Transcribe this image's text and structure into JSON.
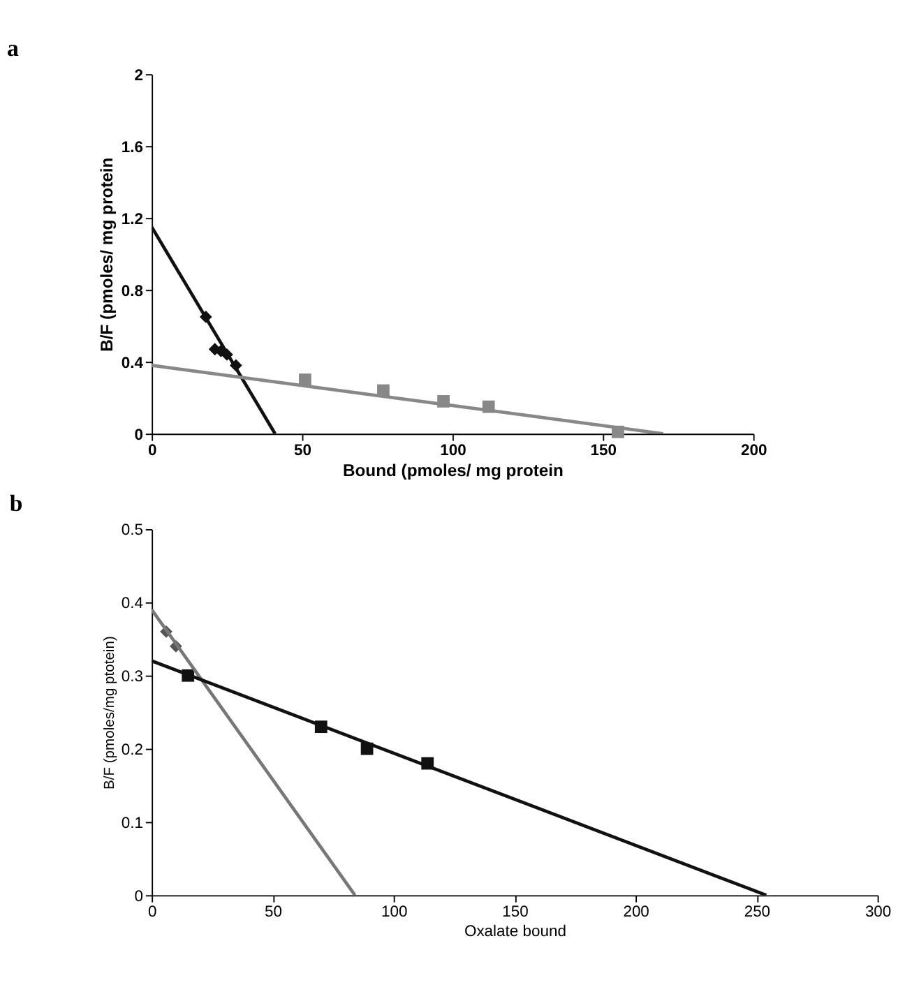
{
  "chart_data": [
    {
      "type": "scatter",
      "title": "a",
      "xlabel": "Bound (pmoles/ mg protein",
      "ylabel": "B/F (pmoles/ mg protein",
      "xlim": [
        0,
        200
      ],
      "xticks": [
        0,
        50,
        100,
        150,
        200
      ],
      "ylim": [
        0,
        2
      ],
      "yticks": [
        0,
        0.4,
        0.8,
        1.2,
        1.6,
        2
      ],
      "grid": false,
      "series": [
        {
          "type": "scatter",
          "marker": "diamond",
          "color": "#111111",
          "x": [
            18,
            21,
            23,
            25,
            28
          ],
          "values": [
            0.65,
            0.47,
            0.46,
            0.44,
            0.38
          ]
        },
        {
          "type": "scatter",
          "marker": "square",
          "color": "#888888",
          "x": [
            51,
            77,
            97,
            112,
            155
          ],
          "values": [
            0.3,
            0.24,
            0.18,
            0.15,
            0.01
          ]
        },
        {
          "type": "line",
          "color": "#111111",
          "x": [
            0,
            41
          ],
          "values": [
            1.15,
            0
          ]
        },
        {
          "type": "line",
          "color": "#888888",
          "x": [
            0,
            170
          ],
          "values": [
            0.38,
            0
          ]
        }
      ]
    },
    {
      "type": "scatter",
      "title": "b",
      "xlabel": "Oxalate bound",
      "ylabel": "B/F (pmoles/mg ptotein)",
      "xlim": [
        0,
        300
      ],
      "xticks": [
        0,
        50,
        100,
        150,
        200,
        250,
        300
      ],
      "ylim": [
        0,
        0.5
      ],
      "yticks": [
        0,
        0.1,
        0.2,
        0.3,
        0.4,
        0.5
      ],
      "grid": false,
      "series": [
        {
          "type": "scatter",
          "marker": "diamond",
          "color": "#555555",
          "x": [
            6,
            10
          ],
          "values": [
            0.36,
            0.34
          ]
        },
        {
          "type": "scatter",
          "marker": "square",
          "color": "#111111",
          "x": [
            15,
            70,
            89,
            114
          ],
          "values": [
            0.3,
            0.23,
            0.2,
            0.18
          ]
        },
        {
          "type": "line",
          "color": "#777777",
          "x": [
            0,
            84
          ],
          "values": [
            0.39,
            0
          ]
        },
        {
          "type": "line",
          "color": "#111111",
          "x": [
            0,
            254
          ],
          "values": [
            0.32,
            0
          ]
        }
      ]
    }
  ]
}
